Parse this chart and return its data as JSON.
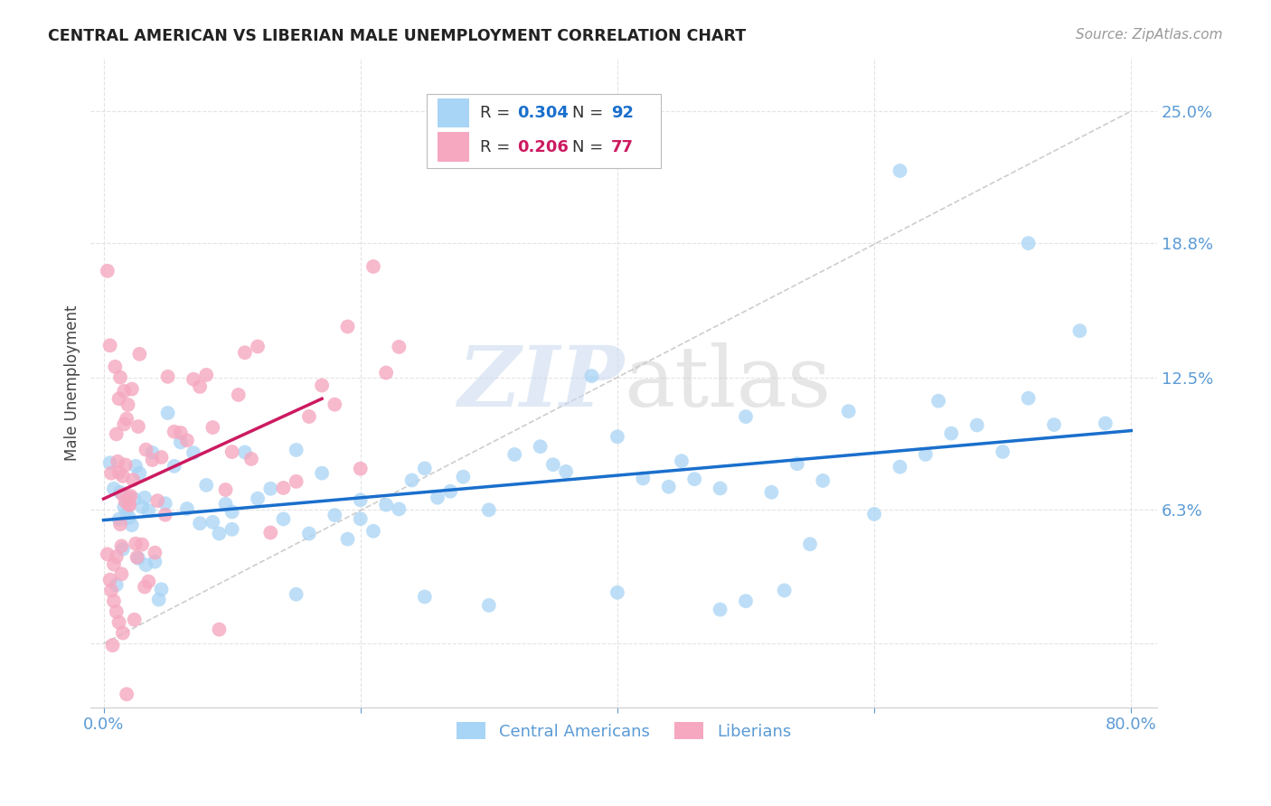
{
  "title": "CENTRAL AMERICAN VS LIBERIAN MALE UNEMPLOYMENT CORRELATION CHART",
  "source": "Source: ZipAtlas.com",
  "ylabel": "Male Unemployment",
  "watermark_zip": "ZIP",
  "watermark_atlas": "atlas",
  "xlim": [
    -0.01,
    0.82
  ],
  "ylim": [
    -0.03,
    0.275
  ],
  "ytick_vals": [
    0.0,
    0.063,
    0.125,
    0.188,
    0.25
  ],
  "ytick_labels": [
    "",
    "6.3%",
    "12.5%",
    "18.8%",
    "25.0%"
  ],
  "xtick_vals": [
    0.0,
    0.2,
    0.4,
    0.6,
    0.8
  ],
  "xtick_labels": [
    "0.0%",
    "",
    "",
    "",
    "80.0%"
  ],
  "blue_color": "#a8d4f5",
  "pink_color": "#f5a8c0",
  "blue_line_color": "#1a6fcc",
  "pink_line_color": "#cc1a60",
  "diag_line_color": "#c8c8c8",
  "axis_color": "#5b9bd5",
  "background_color": "#ffffff",
  "grid_color": "#e0e0e0",
  "ca_trendline_x": [
    0.0,
    0.8
  ],
  "ca_trendline_y": [
    0.058,
    0.1
  ],
  "lib_trendline_x": [
    0.0,
    0.17
  ],
  "lib_trendline_y": [
    0.068,
    0.115
  ],
  "diag_line_x": [
    0.0,
    0.8
  ],
  "diag_line_y": [
    0.0,
    0.25
  ],
  "legend_R_blue": "0.304",
  "legend_N_blue": "92",
  "legend_R_pink": "0.206",
  "legend_N_pink": "77",
  "seed_ca": 42,
  "seed_lib": 99
}
